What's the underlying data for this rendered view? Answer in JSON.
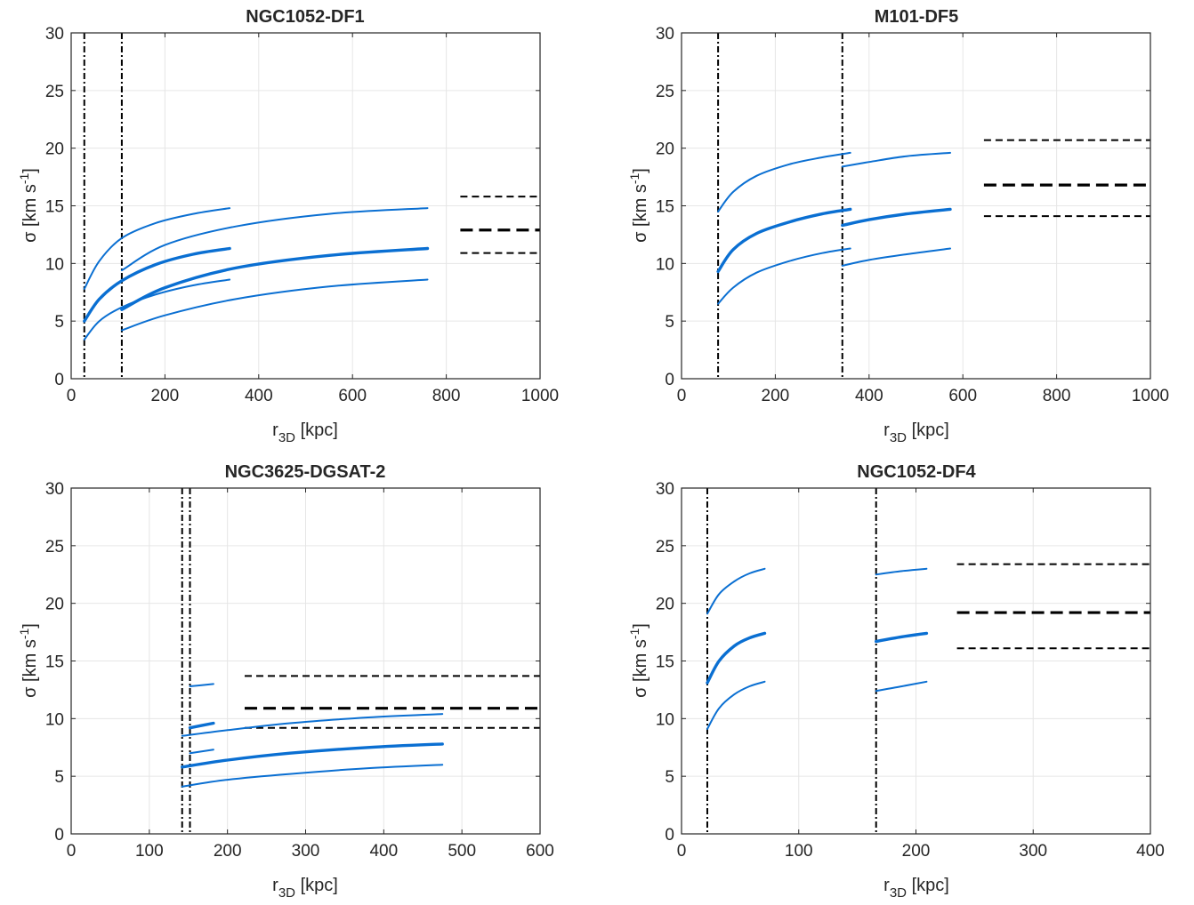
{
  "chart_data": [
    {
      "type": "line",
      "title": "NGC1052-DF1",
      "xlabel": "r",
      "xlabel_sub": "3D",
      "xlabel_unit": " [kpc]",
      "ylabel": "σ [km s",
      "ylabel_sup": "-1",
      "ylabel_close": "]",
      "xlim": [
        0,
        1000
      ],
      "ylim": [
        0,
        30
      ],
      "xticks": [
        0,
        200,
        400,
        600,
        800,
        1000
      ],
      "yticks": [
        0,
        5,
        10,
        15,
        20,
        25,
        30
      ],
      "grid": true,
      "vlines": [
        28,
        108
      ],
      "hlines": [
        {
          "x": [
            830,
            1000
          ],
          "y": 15.8,
          "weight": "thin"
        },
        {
          "x": [
            830,
            1000
          ],
          "y": 12.9,
          "weight": "thick"
        },
        {
          "x": [
            830,
            1000
          ],
          "y": 10.9,
          "weight": "thin"
        }
      ],
      "series": [
        {
          "weight": "thin",
          "points": [
            [
              28,
              7.8
            ],
            [
              60,
              10.2
            ],
            [
              108,
              12.2
            ],
            [
              180,
              13.5
            ],
            [
              260,
              14.3
            ],
            [
              338,
              14.8
            ]
          ]
        },
        {
          "weight": "thick",
          "points": [
            [
              28,
              5.0
            ],
            [
              60,
              6.9
            ],
            [
              108,
              8.5
            ],
            [
              180,
              9.9
            ],
            [
              260,
              10.8
            ],
            [
              338,
              11.3
            ]
          ]
        },
        {
          "weight": "thin",
          "points": [
            [
              28,
              3.4
            ],
            [
              60,
              5.0
            ],
            [
              108,
              6.2
            ],
            [
              180,
              7.3
            ],
            [
              260,
              8.1
            ],
            [
              338,
              8.6
            ]
          ]
        },
        {
          "weight": "thin",
          "points": [
            [
              108,
              9.4
            ],
            [
              200,
              11.6
            ],
            [
              350,
              13.2
            ],
            [
              550,
              14.3
            ],
            [
              760,
              14.8
            ]
          ]
        },
        {
          "weight": "thick",
          "points": [
            [
              108,
              6.0
            ],
            [
              200,
              7.9
            ],
            [
              350,
              9.6
            ],
            [
              550,
              10.7
            ],
            [
              760,
              11.3
            ]
          ]
        },
        {
          "weight": "thin",
          "points": [
            [
              108,
              4.2
            ],
            [
              200,
              5.5
            ],
            [
              350,
              6.9
            ],
            [
              550,
              8.0
            ],
            [
              760,
              8.6
            ]
          ]
        }
      ]
    },
    {
      "type": "line",
      "title": "M101-DF5",
      "xlabel": "r",
      "xlabel_sub": "3D",
      "xlabel_unit": " [kpc]",
      "ylabel": "σ [km s",
      "ylabel_sup": "-1",
      "ylabel_close": "]",
      "xlim": [
        0,
        1000
      ],
      "ylim": [
        0,
        30
      ],
      "xticks": [
        0,
        200,
        400,
        600,
        800,
        1000
      ],
      "yticks": [
        0,
        5,
        10,
        15,
        20,
        25,
        30
      ],
      "grid": true,
      "vlines": [
        78,
        343
      ],
      "hlines": [
        {
          "x": [
            645,
            1000
          ],
          "y": 20.7,
          "weight": "thin"
        },
        {
          "x": [
            645,
            1000
          ],
          "y": 16.8,
          "weight": "thick"
        },
        {
          "x": [
            645,
            1000
          ],
          "y": 14.1,
          "weight": "thin"
        }
      ],
      "series": [
        {
          "weight": "thin",
          "points": [
            [
              78,
              14.5
            ],
            [
              110,
              16.2
            ],
            [
              160,
              17.6
            ],
            [
              230,
              18.6
            ],
            [
              300,
              19.2
            ],
            [
              360,
              19.6
            ]
          ]
        },
        {
          "weight": "thick",
          "points": [
            [
              78,
              9.3
            ],
            [
              110,
              11.2
            ],
            [
              160,
              12.6
            ],
            [
              230,
              13.6
            ],
            [
              300,
              14.3
            ],
            [
              360,
              14.7
            ]
          ]
        },
        {
          "weight": "thin",
          "points": [
            [
              78,
              6.5
            ],
            [
              110,
              7.9
            ],
            [
              160,
              9.2
            ],
            [
              230,
              10.2
            ],
            [
              300,
              10.9
            ],
            [
              360,
              11.3
            ]
          ]
        },
        {
          "weight": "thin",
          "points": [
            [
              343,
              18.4
            ],
            [
              400,
              18.8
            ],
            [
              480,
              19.3
            ],
            [
              573,
              19.6
            ]
          ]
        },
        {
          "weight": "thick",
          "points": [
            [
              343,
              13.3
            ],
            [
              400,
              13.8
            ],
            [
              480,
              14.3
            ],
            [
              573,
              14.7
            ]
          ]
        },
        {
          "weight": "thin",
          "points": [
            [
              343,
              9.8
            ],
            [
              400,
              10.3
            ],
            [
              480,
              10.8
            ],
            [
              573,
              11.3
            ]
          ]
        }
      ]
    },
    {
      "type": "line",
      "title": "NGC3625-DGSAT-2",
      "xlabel": "r",
      "xlabel_sub": "3D",
      "xlabel_unit": " [kpc]",
      "ylabel": "σ [km s",
      "ylabel_sup": "-1",
      "ylabel_close": "]",
      "xlim": [
        0,
        600
      ],
      "ylim": [
        0,
        30
      ],
      "xticks": [
        0,
        100,
        200,
        300,
        400,
        500,
        600
      ],
      "yticks": [
        0,
        5,
        10,
        15,
        20,
        25,
        30
      ],
      "grid": true,
      "vlines": [
        142,
        152
      ],
      "hlines": [
        {
          "x": [
            222,
            600
          ],
          "y": 13.7,
          "weight": "thin"
        },
        {
          "x": [
            222,
            600
          ],
          "y": 10.9,
          "weight": "thick"
        },
        {
          "x": [
            222,
            600
          ],
          "y": 9.2,
          "weight": "thin"
        }
      ],
      "series": [
        {
          "weight": "thin",
          "points": [
            [
              152,
              12.8
            ],
            [
              182,
              13.0
            ]
          ]
        },
        {
          "weight": "thick",
          "points": [
            [
              152,
              9.2
            ],
            [
              182,
              9.6
            ]
          ]
        },
        {
          "weight": "thin",
          "points": [
            [
              152,
              7.0
            ],
            [
              182,
              7.3
            ]
          ]
        },
        {
          "weight": "thin",
          "points": [
            [
              142,
              8.5
            ],
            [
              200,
              9.0
            ],
            [
              280,
              9.6
            ],
            [
              380,
              10.1
            ],
            [
              475,
              10.4
            ]
          ]
        },
        {
          "weight": "thick",
          "points": [
            [
              142,
              5.8
            ],
            [
              200,
              6.4
            ],
            [
              280,
              7.0
            ],
            [
              380,
              7.5
            ],
            [
              475,
              7.8
            ]
          ]
        },
        {
          "weight": "thin",
          "points": [
            [
              142,
              4.1
            ],
            [
              200,
              4.7
            ],
            [
              280,
              5.2
            ],
            [
              380,
              5.7
            ],
            [
              475,
              6.0
            ]
          ]
        }
      ]
    },
    {
      "type": "line",
      "title": "NGC1052-DF4",
      "xlabel": "r",
      "xlabel_sub": "3D",
      "xlabel_unit": " [kpc]",
      "ylabel": "σ [km s",
      "ylabel_sup": "-1",
      "ylabel_close": "]",
      "xlim": [
        0,
        400
      ],
      "ylim": [
        0,
        30
      ],
      "xticks": [
        0,
        100,
        200,
        300,
        400
      ],
      "yticks": [
        0,
        5,
        10,
        15,
        20,
        25,
        30
      ],
      "grid": true,
      "vlines": [
        22,
        166
      ],
      "hlines": [
        {
          "x": [
            235,
            400
          ],
          "y": 23.4,
          "weight": "thin"
        },
        {
          "x": [
            235,
            400
          ],
          "y": 19.2,
          "weight": "thick"
        },
        {
          "x": [
            235,
            400
          ],
          "y": 16.1,
          "weight": "thin"
        }
      ],
      "series": [
        {
          "weight": "thin",
          "points": [
            [
              22,
              19.1
            ],
            [
              32,
              20.8
            ],
            [
              45,
              21.9
            ],
            [
              58,
              22.6
            ],
            [
              71,
              23.0
            ]
          ]
        },
        {
          "weight": "thick",
          "points": [
            [
              22,
              13.1
            ],
            [
              32,
              15.0
            ],
            [
              45,
              16.3
            ],
            [
              58,
              17.0
            ],
            [
              71,
              17.4
            ]
          ]
        },
        {
          "weight": "thin",
          "points": [
            [
              22,
              9.1
            ],
            [
              32,
              10.9
            ],
            [
              45,
              12.1
            ],
            [
              58,
              12.8
            ],
            [
              71,
              13.2
            ]
          ]
        },
        {
          "weight": "thin",
          "points": [
            [
              166,
              22.5
            ],
            [
              188,
              22.8
            ],
            [
              209,
              23.0
            ]
          ]
        },
        {
          "weight": "thick",
          "points": [
            [
              166,
              16.7
            ],
            [
              188,
              17.1
            ],
            [
              209,
              17.4
            ]
          ]
        },
        {
          "weight": "thin",
          "points": [
            [
              166,
              12.4
            ],
            [
              188,
              12.8
            ],
            [
              209,
              13.2
            ]
          ]
        }
      ]
    }
  ]
}
